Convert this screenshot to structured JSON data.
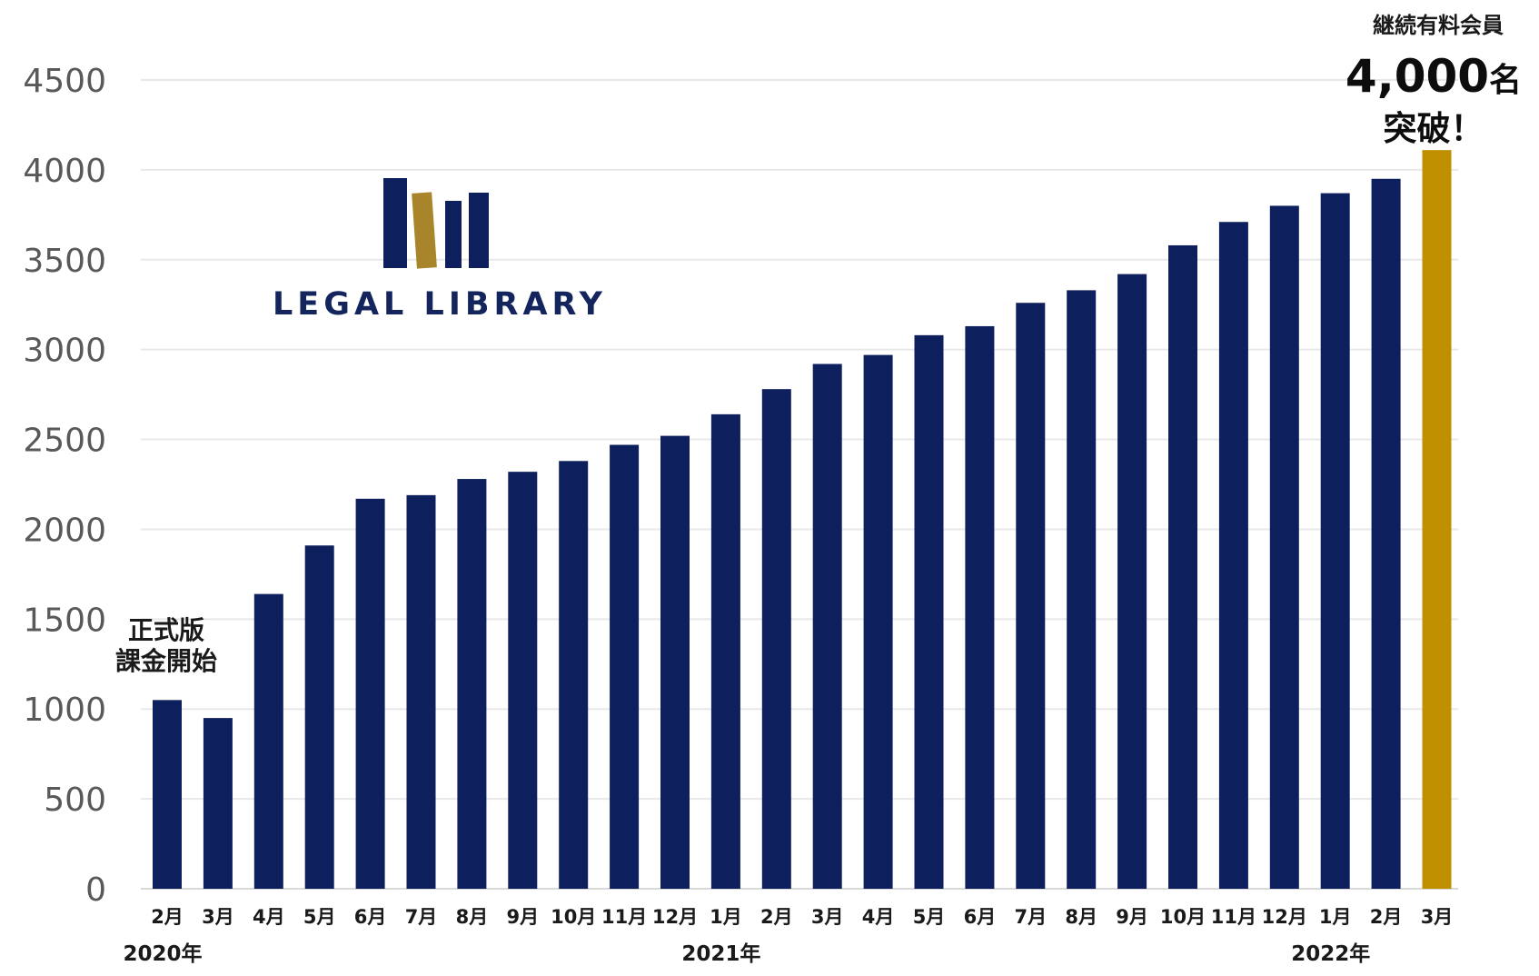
{
  "chart_data": {
    "type": "bar",
    "categories": [
      "2月",
      "3月",
      "4月",
      "5月",
      "6月",
      "7月",
      "8月",
      "9月",
      "10月",
      "11月",
      "12月",
      "1月",
      "2月",
      "3月",
      "4月",
      "5月",
      "6月",
      "7月",
      "8月",
      "9月",
      "10月",
      "11月",
      "12月",
      "1月",
      "2月",
      "3月"
    ],
    "values": [
      1050,
      950,
      1640,
      1910,
      2170,
      2190,
      2280,
      2320,
      2380,
      2470,
      2520,
      2640,
      2780,
      2920,
      2970,
      3080,
      3130,
      3260,
      3330,
      3420,
      3580,
      3710,
      3800,
      3870,
      3950,
      4110
    ],
    "year_labels": [
      {
        "label": "2020年",
        "index": 0
      },
      {
        "label": "2021年",
        "index": 11
      },
      {
        "label": "2022年",
        "index": 23
      }
    ],
    "ylim": [
      0,
      4500
    ],
    "yticks": [
      "0",
      "500",
      "1000",
      "1500",
      "2000",
      "2500",
      "3000",
      "3500",
      "4000",
      "4500"
    ],
    "grid": true,
    "colors": {
      "bar": "#0d1f5c",
      "highlight": "#bf8f00",
      "grid": "#e8e8e8",
      "tick_text": "#595959"
    },
    "highlight_index": 25,
    "annotations": {
      "start_line1": "正式版",
      "start_line2": "課金開始",
      "end_line1": "継続有料会員",
      "end_number": "4,000",
      "end_unit": "名",
      "end_line3": "突破！"
    }
  },
  "logo": {
    "text": "LEGAL LIBRARY",
    "text_color": "#14255e",
    "book_colors": [
      "#0d1f5c",
      "#a8852a",
      "#0d1f5c",
      "#0d1f5c"
    ]
  }
}
